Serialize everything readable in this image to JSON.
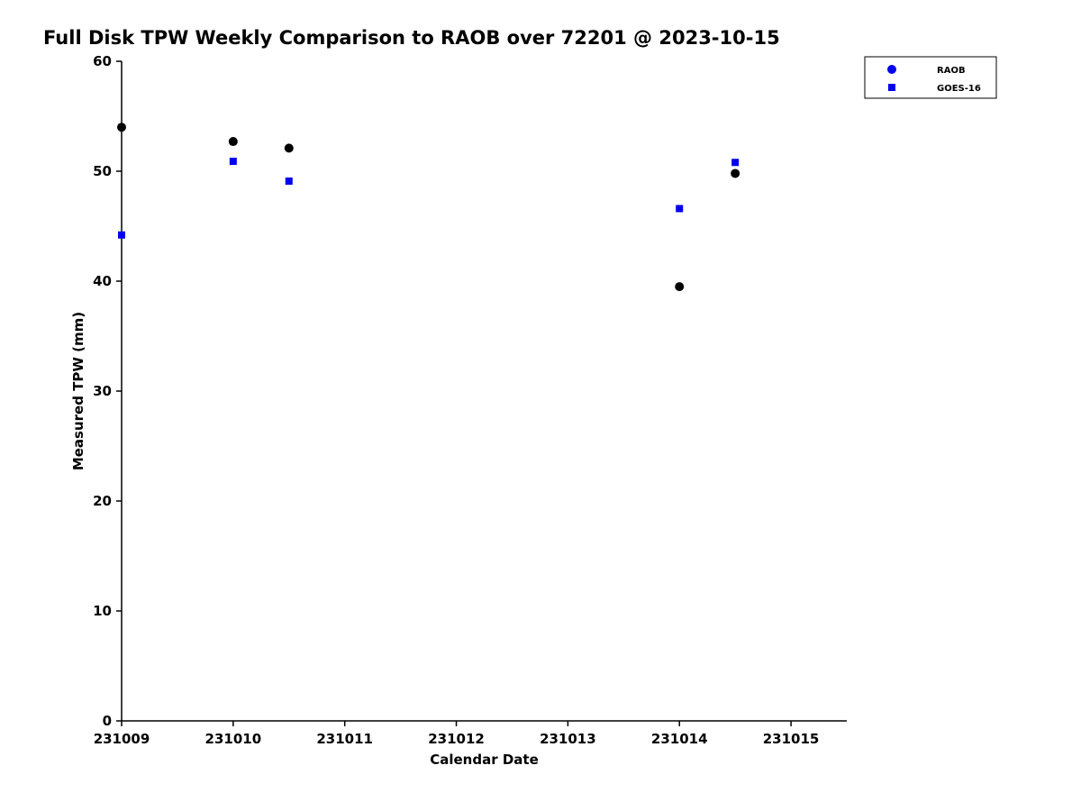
{
  "chart_data": {
    "type": "scatter",
    "title": "Full Disk TPW Weekly Comparison to RAOB over 72201 @ 2023-10-15",
    "xlabel": "Calendar Date",
    "ylabel": "Measured TPW (mm)",
    "xlim": [
      231009,
      231015.5
    ],
    "ylim": [
      0,
      60
    ],
    "xticks": [
      231009,
      231010,
      231011,
      231012,
      231013,
      231014,
      231015
    ],
    "yticks": [
      0,
      10,
      20,
      30,
      40,
      50,
      60
    ],
    "grid": false,
    "legend_position": "top-right-outside",
    "axis_color": "#000000",
    "series": [
      {
        "name": "RAOB",
        "marker": "circle",
        "color": "#000000",
        "legend_marker_color": "#0000ee",
        "points": [
          [
            231009.0,
            54.0
          ],
          [
            231010.0,
            52.7
          ],
          [
            231010.5,
            52.1
          ],
          [
            231014.0,
            39.5
          ],
          [
            231014.5,
            49.8
          ]
        ]
      },
      {
        "name": "GOES-16",
        "marker": "square",
        "color": "#0000ee",
        "legend_marker_color": "#0000ee",
        "points": [
          [
            231009.0,
            44.2
          ],
          [
            231010.0,
            50.9
          ],
          [
            231010.5,
            49.1
          ],
          [
            231014.0,
            46.6
          ],
          [
            231014.5,
            50.8
          ]
        ]
      }
    ]
  }
}
